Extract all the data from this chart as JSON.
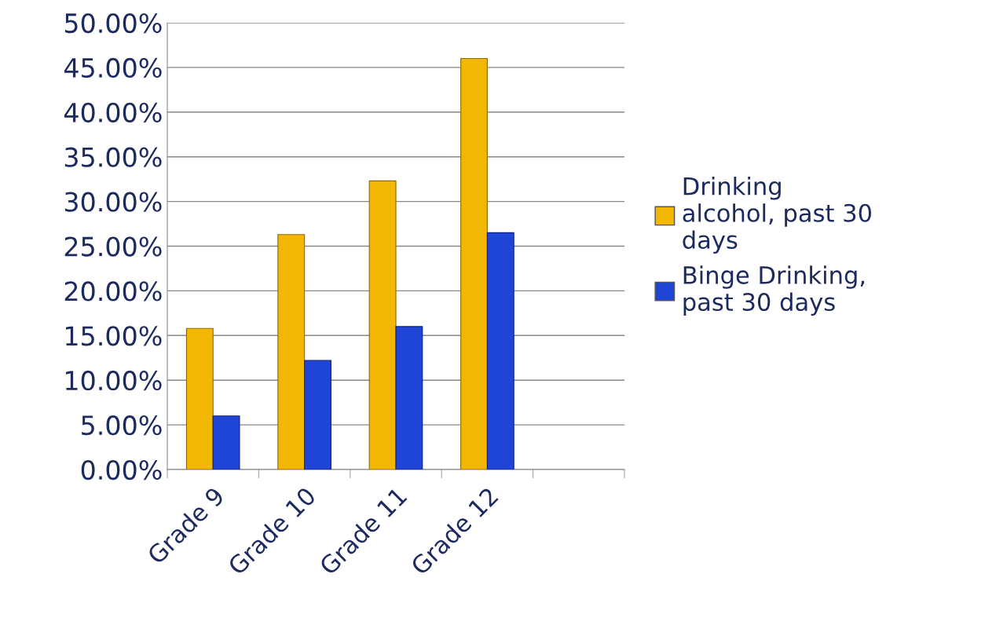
{
  "chart_data": {
    "type": "bar",
    "categories": [
      "Grade 9",
      "Grade 10",
      "Grade 11",
      "Grade 12",
      null
    ],
    "series": [
      {
        "name": "Drinking alcohol, past 30 days",
        "color": "#f2b705",
        "values": [
          15.8,
          26.3,
          32.3,
          46.0,
          null
        ]
      },
      {
        "name": "Binge Drinking, past 30 days",
        "color": "#1f45d6",
        "values": [
          6.0,
          12.2,
          16.0,
          26.5,
          null
        ]
      }
    ],
    "ylim": [
      0,
      50
    ],
    "yticks": [
      {
        "value": 0,
        "label": "0.00%"
      },
      {
        "value": 5,
        "label": "5.00%"
      },
      {
        "value": 10,
        "label": "10.00%"
      },
      {
        "value": 15,
        "label": "15.00%"
      },
      {
        "value": 20,
        "label": "20.00%"
      },
      {
        "value": 25,
        "label": "25.00%"
      },
      {
        "value": 30,
        "label": "30.00%"
      },
      {
        "value": 35,
        "label": "35.00%"
      },
      {
        "value": 40,
        "label": "40.00%"
      },
      {
        "value": 45,
        "label": "45.00%"
      },
      {
        "value": 50,
        "label": "50.00%"
      }
    ],
    "grid": "y",
    "legend": "right"
  }
}
